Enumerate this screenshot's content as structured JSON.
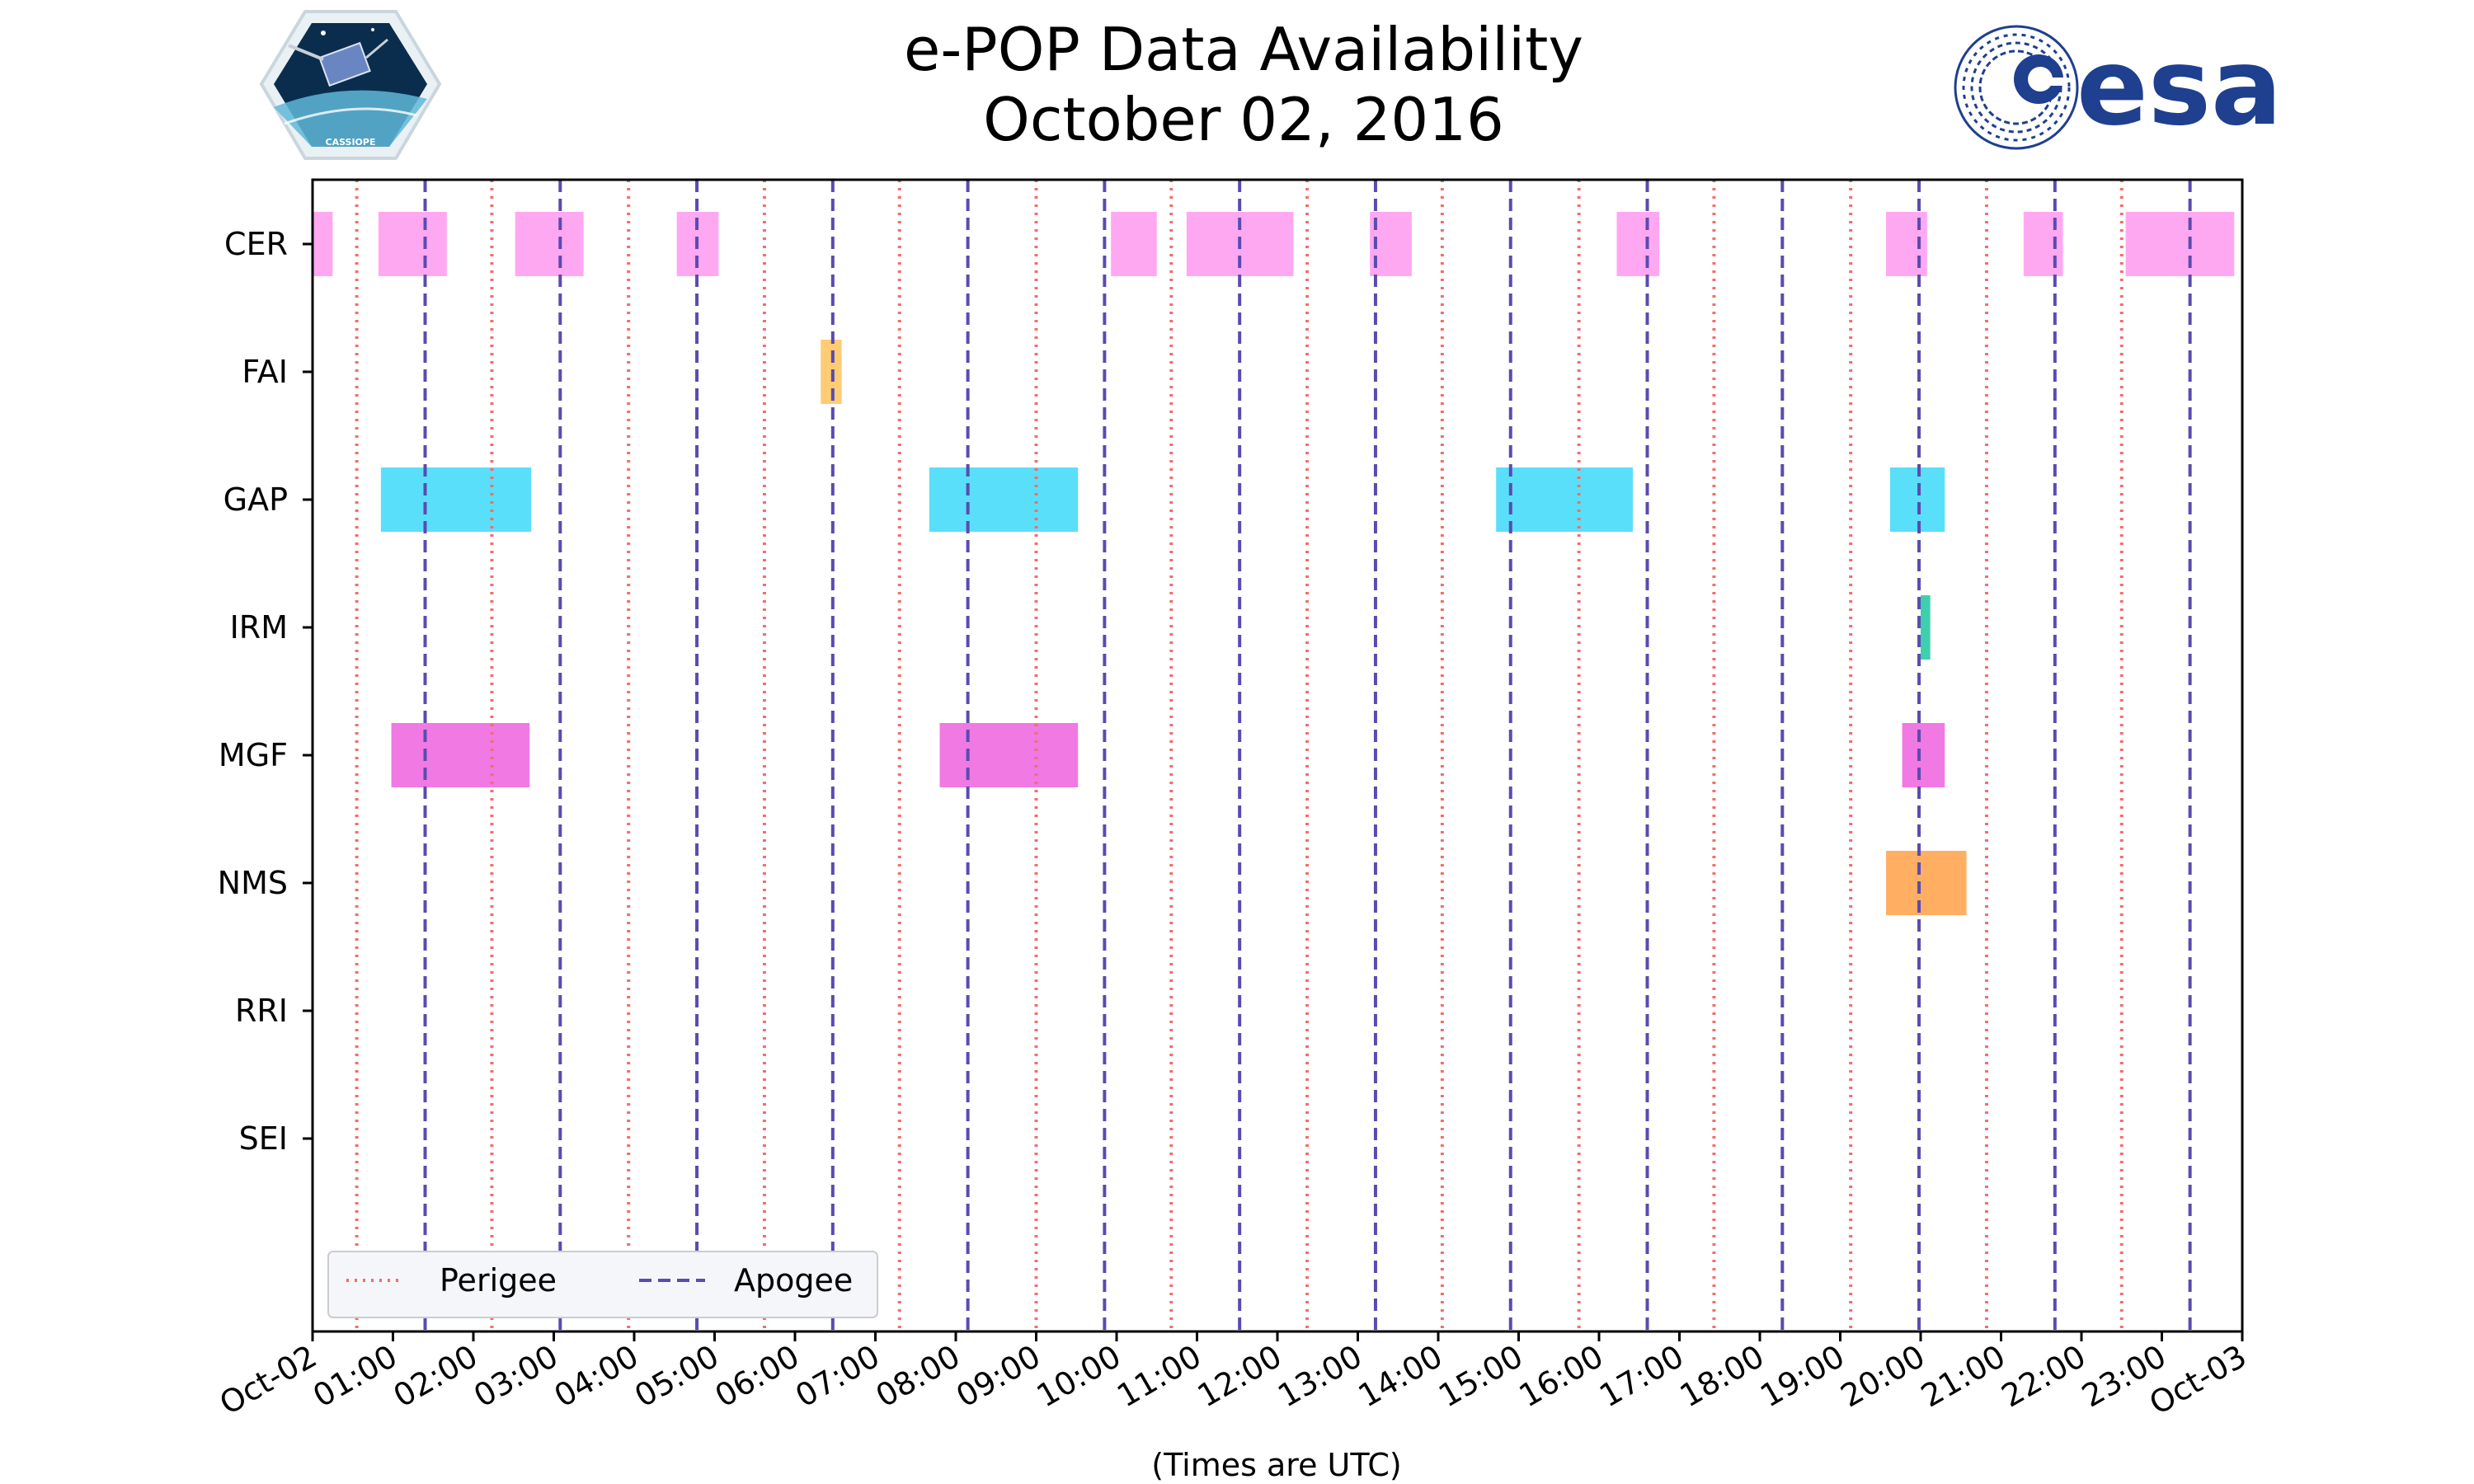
{
  "header": {
    "left_logo": {
      "name": "CASSIOPE",
      "label": "CASSIOPE"
    },
    "right_logo": {
      "name": "esa",
      "label": "esa"
    }
  },
  "chart_data": {
    "type": "bar",
    "orientation": "horizontal-timeline",
    "title": "e-POP Data Availability",
    "subtitle": "October 02, 2016",
    "xlabel": "(Times are UTC)",
    "ylabel": "",
    "xlim": [
      0,
      24
    ],
    "x_unit": "hours UTC",
    "x_tick_labels": [
      "Oct-02",
      "01:00",
      "02:00",
      "03:00",
      "04:00",
      "05:00",
      "06:00",
      "07:00",
      "08:00",
      "09:00",
      "10:00",
      "11:00",
      "12:00",
      "13:00",
      "14:00",
      "15:00",
      "16:00",
      "17:00",
      "18:00",
      "19:00",
      "20:00",
      "21:00",
      "22:00",
      "23:00",
      "Oct-03"
    ],
    "categories": [
      "CER",
      "FAI",
      "GAP",
      "IRM",
      "MGF",
      "NMS",
      "RRI",
      "SEI"
    ],
    "series": [
      {
        "name": "CER",
        "color": "#ff99f0",
        "intervals": [
          [
            0.0,
            0.25
          ],
          [
            0.82,
            1.67
          ],
          [
            2.52,
            3.37
          ],
          [
            4.53,
            5.05
          ],
          [
            9.93,
            10.5
          ],
          [
            10.87,
            12.2
          ],
          [
            13.15,
            13.67
          ],
          [
            16.22,
            16.75
          ],
          [
            19.57,
            20.08
          ],
          [
            21.28,
            21.77
          ],
          [
            22.55,
            23.9
          ]
        ]
      },
      {
        "name": "FAI",
        "color": "#ffc35c",
        "intervals": [
          [
            6.32,
            6.58
          ]
        ]
      },
      {
        "name": "GAP",
        "color": "#3dd9f9",
        "intervals": [
          [
            0.85,
            2.72
          ],
          [
            7.67,
            9.52
          ],
          [
            14.72,
            16.42
          ],
          [
            19.62,
            20.3
          ]
        ]
      },
      {
        "name": "IRM",
        "color": "#1fc79f",
        "intervals": [
          [
            20.0,
            20.12
          ]
        ]
      },
      {
        "name": "MGF",
        "color": "#ed62df",
        "intervals": [
          [
            0.98,
            2.7
          ],
          [
            7.8,
            9.52
          ],
          [
            19.77,
            20.3
          ]
        ]
      },
      {
        "name": "NMS",
        "color": "#ffa047",
        "intervals": [
          [
            19.57,
            20.57
          ]
        ]
      },
      {
        "name": "RRI",
        "color": "#9a9a9a",
        "intervals": []
      },
      {
        "name": "SEI",
        "color": "#9a9a9a",
        "intervals": []
      }
    ],
    "perigee_times": [
      0.55,
      2.23,
      3.93,
      5.62,
      7.3,
      9.0,
      10.68,
      12.37,
      14.05,
      15.75,
      17.43,
      19.13,
      20.82,
      22.5
    ],
    "apogee_times": [
      1.4,
      3.08,
      4.78,
      6.47,
      8.15,
      9.85,
      11.53,
      13.22,
      14.9,
      16.6,
      18.28,
      19.98,
      21.67,
      23.35
    ],
    "reference_line_colors": {
      "perigee": "#f26d6d",
      "apogee": "#5a4bb0"
    },
    "legend": {
      "position": "lower-left",
      "entries": [
        {
          "label": "Perigee",
          "style": "dotted",
          "color": "#f26d6d"
        },
        {
          "label": "Apogee",
          "style": "dashed",
          "color": "#5a4bb0"
        }
      ]
    },
    "grid": false
  }
}
